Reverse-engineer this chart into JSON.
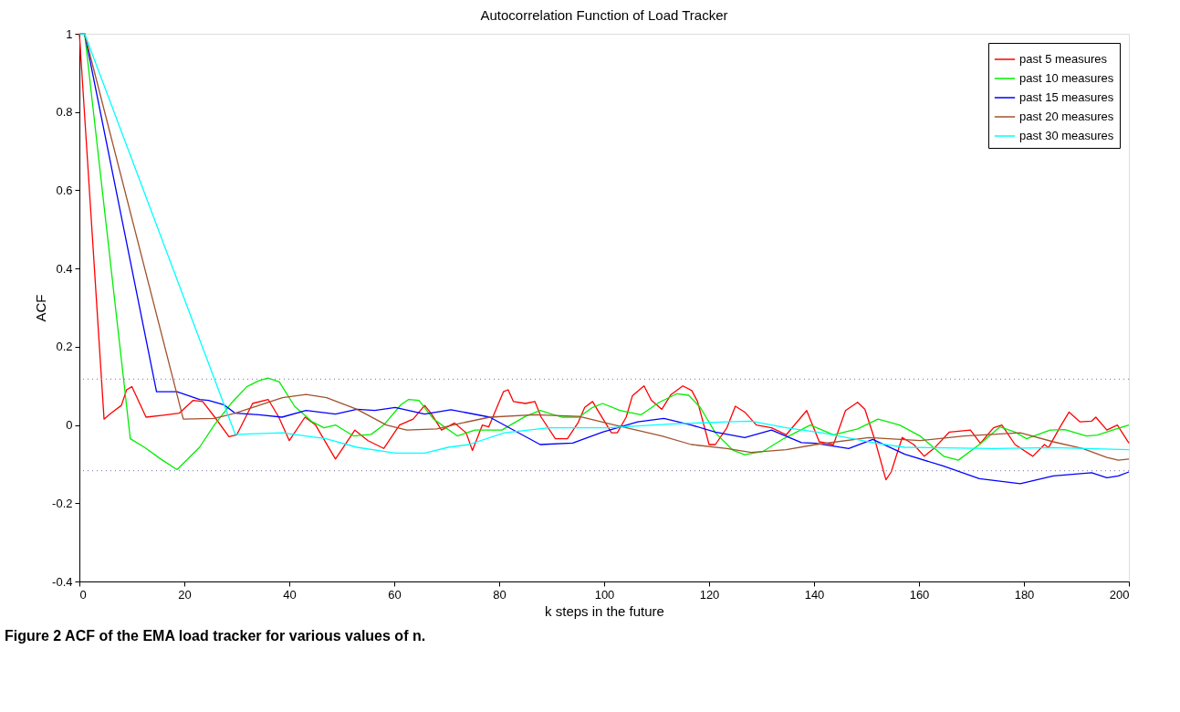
{
  "chart_data": {
    "type": "line",
    "title": "Autocorrelation Function of Load Tracker",
    "xlabel": "k steps in the future",
    "ylabel": "ACF",
    "xlim": [
      0,
      200
    ],
    "xticks": [
      0,
      20,
      40,
      60,
      80,
      100,
      120,
      140,
      160,
      180,
      200
    ],
    "ylim": [
      -0.4,
      1
    ],
    "yticks": [
      -0.4,
      -0.2,
      0,
      0.2,
      0.4,
      0.6,
      0.8,
      1
    ],
    "grid": false,
    "legend": "top right",
    "marker": "none",
    "line_style": "solid",
    "ref_lines": [
      {
        "axis": "y",
        "value": 0.117,
        "label": null,
        "line_style": "dotted",
        "color": "#8888cc"
      },
      {
        "axis": "y",
        "value": -0.117,
        "label": null,
        "line_style": "dotted",
        "color": "#8888cc"
      }
    ],
    "annotations": [
      "Figure 2 ACF of the EMA load tracker for various values of n."
    ],
    "series": [
      {
        "name": "past 5 measures",
        "color": "#ff0000",
        "x": [
          0,
          4.7,
          6,
          8,
          9,
          10,
          12.7,
          16,
          19,
          21.7,
          23.5,
          25.8,
          28.5,
          30,
          33,
          36,
          38,
          40,
          43,
          45,
          48.8,
          52.5,
          55,
          58,
          61,
          63.6,
          65.8,
          67,
          69,
          71.5,
          73.7,
          74.9,
          76.8,
          78,
          80.8,
          81.7,
          82.7,
          85,
          86.8,
          88,
          90.7,
          93,
          95,
          96.3,
          97.8,
          98.9,
          101.4,
          102.5,
          104.2,
          105.4,
          107.6,
          109,
          111,
          112.7,
          115,
          116.7,
          117.8,
          120,
          121.2,
          123.4,
          125,
          126.8,
          129,
          131.9,
          134.7,
          138.6,
          141,
          143.7,
          146,
          148.3,
          149.7,
          151.7,
          153.7,
          154.7,
          156.8,
          159,
          161,
          163,
          165.8,
          169.8,
          171.7,
          174.2,
          175.8,
          178.3,
          181.7,
          183.9,
          184.7,
          186.8,
          188.6,
          190.7,
          192.9,
          193.7,
          195.8,
          197.8,
          200
        ],
        "values": [
          1,
          0.015,
          0.03,
          0.05,
          0.09,
          0.098,
          0.02,
          0.025,
          0.03,
          0.063,
          0.06,
          0.02,
          -0.03,
          -0.025,
          0.055,
          0.065,
          0.02,
          -0.04,
          0.02,
          0.0,
          -0.087,
          -0.013,
          -0.04,
          -0.06,
          0.0,
          0.015,
          0.05,
          0.03,
          -0.013,
          0.005,
          -0.02,
          -0.065,
          0.0,
          -0.005,
          0.085,
          0.09,
          0.06,
          0.055,
          0.06,
          0.02,
          -0.035,
          -0.035,
          0.005,
          0.045,
          0.06,
          0.035,
          -0.02,
          -0.02,
          0.02,
          0.075,
          0.1,
          0.063,
          0.04,
          0.077,
          0.1,
          0.088,
          0.06,
          -0.05,
          -0.05,
          -0.007,
          0.048,
          0.033,
          0.0,
          -0.007,
          -0.025,
          0.037,
          -0.043,
          -0.05,
          0.037,
          0.058,
          0.04,
          -0.043,
          -0.14,
          -0.12,
          -0.032,
          -0.05,
          -0.08,
          -0.058,
          -0.018,
          -0.013,
          -0.047,
          -0.007,
          0.0,
          -0.05,
          -0.08,
          -0.05,
          -0.058,
          -0.007,
          0.033,
          0.008,
          0.01,
          0.02,
          -0.013,
          0.0,
          -0.046
        ]
      },
      {
        "name": "past 10 measures",
        "color": "#00ee00",
        "x": [
          0,
          1,
          9.7,
          12.4,
          15.5,
          18.6,
          22.9,
          25.7,
          29.1,
          31.9,
          34.2,
          35.9,
          38.1,
          41,
          44.4,
          46.6,
          48.8,
          52.2,
          55.6,
          58,
          61.3,
          62.7,
          64.7,
          67.5,
          72,
          75.4,
          80.5,
          85,
          87.8,
          91.9,
          95.2,
          97.8,
          99.7,
          103,
          107,
          110.5,
          113.9,
          116.1,
          118.3,
          121.2,
          124.6,
          126.8,
          130.2,
          134.2,
          139.3,
          143.7,
          148.3,
          152.2,
          156.3,
          160.2,
          164.7,
          167.5,
          171.5,
          175.4,
          178.3,
          180.5,
          185,
          187.8,
          191.9,
          194,
          196.9,
          200
        ],
        "values": [
          1,
          1,
          -0.035,
          -0.057,
          -0.087,
          -0.114,
          -0.057,
          0.0,
          0.058,
          0.098,
          0.113,
          0.12,
          0.11,
          0.048,
          0.008,
          -0.007,
          0.0,
          -0.028,
          -0.024,
          0.0,
          0.052,
          0.065,
          0.063,
          0.015,
          -0.028,
          -0.013,
          -0.013,
          0.022,
          0.037,
          0.02,
          0.02,
          0.045,
          0.055,
          0.037,
          0.026,
          0.058,
          0.08,
          0.076,
          0.045,
          -0.02,
          -0.065,
          -0.076,
          -0.068,
          -0.035,
          0.0,
          -0.025,
          -0.01,
          0.015,
          0.0,
          -0.028,
          -0.08,
          -0.09,
          -0.05,
          -0.005,
          -0.018,
          -0.035,
          -0.013,
          -0.012,
          -0.028,
          -0.026,
          -0.013,
          0.0
        ]
      },
      {
        "name": "past 15 measures",
        "color": "#0000ff",
        "x": [
          0,
          1,
          14.7,
          18.6,
          22.9,
          24.6,
          27.5,
          29.7,
          34.2,
          38.6,
          43.2,
          48.8,
          52.9,
          56.3,
          60.2,
          65.8,
          70.8,
          78.2,
          87.8,
          94,
          99.7,
          106.4,
          111.4,
          116.6,
          121.2,
          126.8,
          131.9,
          137.6,
          140.3,
          146.6,
          151.2,
          157.3,
          164.7,
          171.5,
          179.3,
          185.6,
          192.9,
          195.8,
          198,
          200
        ],
        "values": [
          1,
          1,
          0.085,
          0.085,
          0.065,
          0.063,
          0.052,
          0.03,
          0.026,
          0.02,
          0.037,
          0.028,
          0.04,
          0.037,
          0.045,
          0.028,
          0.039,
          0.02,
          -0.05,
          -0.046,
          -0.018,
          0.008,
          0.017,
          0.0,
          -0.018,
          -0.032,
          -0.013,
          -0.045,
          -0.047,
          -0.06,
          -0.037,
          -0.075,
          -0.105,
          -0.137,
          -0.15,
          -0.13,
          -0.122,
          -0.135,
          -0.13,
          -0.12
        ]
      },
      {
        "name": "past 20 measures",
        "color": "#a0522d",
        "x": [
          0,
          1,
          19.8,
          25.7,
          29.7,
          38.7,
          43.2,
          47.1,
          52.9,
          58.5,
          62.4,
          68.1,
          72.5,
          78.2,
          86.8,
          95.2,
          102,
          111,
          116.6,
          123.4,
          128,
          134.7,
          140.3,
          150.5,
          160.2,
          168.6,
          179.3,
          185.6,
          191.2,
          195.8,
          198,
          200
        ],
        "values": [
          1,
          1,
          0.015,
          0.017,
          0.03,
          0.07,
          0.078,
          0.07,
          0.04,
          0.0,
          -0.013,
          -0.01,
          0.004,
          0.02,
          0.026,
          0.022,
          0.0,
          -0.028,
          -0.05,
          -0.06,
          -0.07,
          -0.063,
          -0.05,
          -0.032,
          -0.04,
          -0.028,
          -0.02,
          -0.043,
          -0.06,
          -0.083,
          -0.09,
          -0.087
        ]
      },
      {
        "name": "past 30 measures",
        "color": "#00ffff",
        "x": [
          0,
          1,
          29.7,
          38.7,
          47,
          52.9,
          60.2,
          65.8,
          70.3,
          74.2,
          81,
          89.5,
          100.8,
          112.2,
          123.4,
          128,
          134.7,
          141.5,
          151.7,
          157.3,
          174.2,
          185.6,
          200
        ],
        "values": [
          1,
          1,
          -0.024,
          -0.02,
          -0.035,
          -0.057,
          -0.072,
          -0.072,
          -0.057,
          -0.05,
          -0.02,
          -0.007,
          -0.007,
          0.002,
          0.008,
          0.01,
          -0.007,
          -0.02,
          -0.046,
          -0.057,
          -0.06,
          -0.058,
          -0.063
        ]
      }
    ]
  }
}
